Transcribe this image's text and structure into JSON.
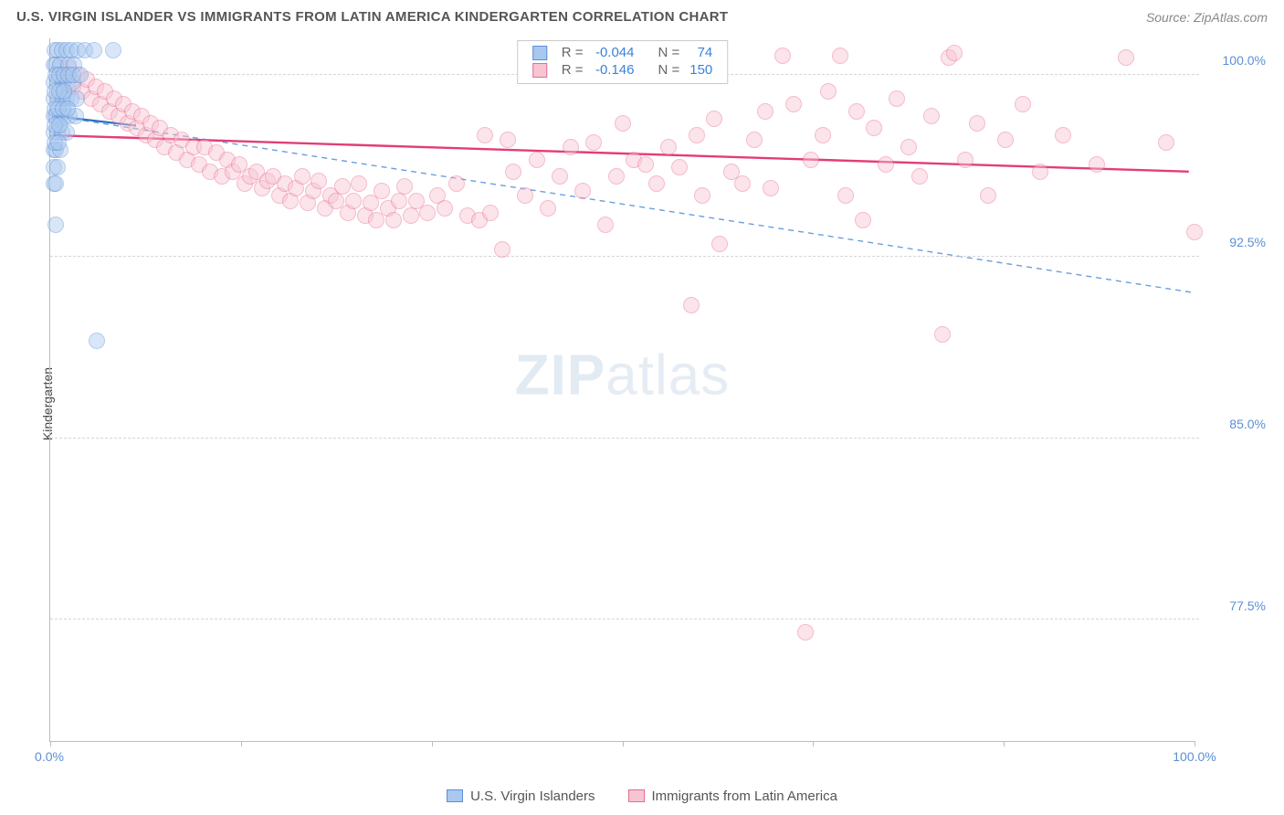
{
  "header": {
    "title": "U.S. VIRGIN ISLANDER VS IMMIGRANTS FROM LATIN AMERICA KINDERGARTEN CORRELATION CHART",
    "source": "Source: ZipAtlas.com"
  },
  "chart": {
    "type": "scatter",
    "ylabel": "Kindergarten",
    "xlim": [
      0,
      100
    ],
    "ylim": [
      72.5,
      101.5
    ],
    "y_ticks": [
      77.5,
      85.0,
      92.5,
      100.0
    ],
    "y_tick_labels": [
      "77.5%",
      "85.0%",
      "92.5%",
      "100.0%"
    ],
    "x_ticks": [
      0,
      16.67,
      33.33,
      50.0,
      66.67,
      83.33,
      100.0
    ],
    "x_tick_labels": {
      "0": "0.0%",
      "100": "100.0%"
    },
    "background_color": "#ffffff",
    "grid_color": "#d6d6d6",
    "axis_color": "#bdbdbd",
    "tick_label_color": "#5b8fd6",
    "marker_radius": 9,
    "marker_opacity": 0.45,
    "series": [
      {
        "id": "usvi",
        "label": "U.S. Virgin Islanders",
        "fill": "#a9c8ef",
        "stroke": "#5b8fd6",
        "trend_solid": {
          "x1": 0.3,
          "y1": 98.3,
          "x2": 7.5,
          "y2": 97.9,
          "color": "#2e6fc2",
          "width": 2.2
        },
        "trend_dashed": {
          "x1": 0.3,
          "y1": 98.3,
          "x2": 100,
          "y2": 91.0,
          "color": "#6a9fdd",
          "width": 1.4,
          "dash": "6,5"
        },
        "R": "-0.044",
        "N": "74",
        "points": [
          [
            0.4,
            101.0
          ],
          [
            0.6,
            101.0
          ],
          [
            1.0,
            101.0
          ],
          [
            1.4,
            101.0
          ],
          [
            1.8,
            101.0
          ],
          [
            2.4,
            101.0
          ],
          [
            3.0,
            101.0
          ],
          [
            3.8,
            101.0
          ],
          [
            5.5,
            101.0
          ],
          [
            0.3,
            100.4
          ],
          [
            0.5,
            100.4
          ],
          [
            0.9,
            100.4
          ],
          [
            1.6,
            100.4
          ],
          [
            2.1,
            100.4
          ],
          [
            0.3,
            99.7
          ],
          [
            0.6,
            99.7
          ],
          [
            1.1,
            99.7
          ],
          [
            1.5,
            99.7
          ],
          [
            2.0,
            99.7
          ],
          [
            0.3,
            99.0
          ],
          [
            0.7,
            99.0
          ],
          [
            1.1,
            99.0
          ],
          [
            1.4,
            99.0
          ],
          [
            1.8,
            99.0
          ],
          [
            2.3,
            99.0
          ],
          [
            0.3,
            98.3
          ],
          [
            0.5,
            98.3
          ],
          [
            0.9,
            98.3
          ],
          [
            1.3,
            98.3
          ],
          [
            1.7,
            98.3
          ],
          [
            2.2,
            98.3
          ],
          [
            0.3,
            97.6
          ],
          [
            0.6,
            97.6
          ],
          [
            1.0,
            97.6
          ],
          [
            1.4,
            97.6
          ],
          [
            0.3,
            96.9
          ],
          [
            0.5,
            96.9
          ],
          [
            0.9,
            96.9
          ],
          [
            0.3,
            96.2
          ],
          [
            0.6,
            96.2
          ],
          [
            0.3,
            95.5
          ],
          [
            0.5,
            95.5
          ],
          [
            0.4,
            99.3
          ],
          [
            0.8,
            99.3
          ],
          [
            1.2,
            99.3
          ],
          [
            0.4,
            98.6
          ],
          [
            0.7,
            98.6
          ],
          [
            1.1,
            98.6
          ],
          [
            1.5,
            98.6
          ],
          [
            0.4,
            97.9
          ],
          [
            0.8,
            97.9
          ],
          [
            0.4,
            97.2
          ],
          [
            0.7,
            97.2
          ],
          [
            0.5,
            100.0
          ],
          [
            0.8,
            100.0
          ],
          [
            1.2,
            100.0
          ],
          [
            1.6,
            100.0
          ],
          [
            2.0,
            100.0
          ],
          [
            2.6,
            100.0
          ],
          [
            0.5,
            93.8
          ],
          [
            4.1,
            89.0
          ]
        ]
      },
      {
        "id": "latam",
        "label": "Immigrants from Latin America",
        "fill": "#f7c5d1",
        "stroke": "#e86a93",
        "trend_solid": {
          "x1": 0.3,
          "y1": 97.5,
          "x2": 99.5,
          "y2": 96.0,
          "color": "#e23d78",
          "width": 2.4
        },
        "R": "-0.146",
        "N": "150",
        "points": [
          [
            0.8,
            100.3
          ],
          [
            1.2,
            99.8
          ],
          [
            1.6,
            100.3
          ],
          [
            2.0,
            99.5
          ],
          [
            2.4,
            100.0
          ],
          [
            2.8,
            99.3
          ],
          [
            3.2,
            99.8
          ],
          [
            3.6,
            99.0
          ],
          [
            4.0,
            99.5
          ],
          [
            4.4,
            98.8
          ],
          [
            4.8,
            99.3
          ],
          [
            5.2,
            98.5
          ],
          [
            5.6,
            99.0
          ],
          [
            6.0,
            98.3
          ],
          [
            6.4,
            98.8
          ],
          [
            6.8,
            98.0
          ],
          [
            7.2,
            98.5
          ],
          [
            7.6,
            97.8
          ],
          [
            8.0,
            98.3
          ],
          [
            8.4,
            97.5
          ],
          [
            8.8,
            98.0
          ],
          [
            9.2,
            97.3
          ],
          [
            9.6,
            97.8
          ],
          [
            10.0,
            97.0
          ],
          [
            10.5,
            97.5
          ],
          [
            11.0,
            96.8
          ],
          [
            11.5,
            97.3
          ],
          [
            12.0,
            96.5
          ],
          [
            12.5,
            97.0
          ],
          [
            13.0,
            96.3
          ],
          [
            13.5,
            97.0
          ],
          [
            14.0,
            96.0
          ],
          [
            14.5,
            96.8
          ],
          [
            15.0,
            95.8
          ],
          [
            15.5,
            96.5
          ],
          [
            16.0,
            96.0
          ],
          [
            16.5,
            96.3
          ],
          [
            17.0,
            95.5
          ],
          [
            17.5,
            95.8
          ],
          [
            18.0,
            96.0
          ],
          [
            18.5,
            95.3
          ],
          [
            19.0,
            95.6
          ],
          [
            19.5,
            95.8
          ],
          [
            20.0,
            95.0
          ],
          [
            20.5,
            95.5
          ],
          [
            21.0,
            94.8
          ],
          [
            21.5,
            95.3
          ],
          [
            22.0,
            95.8
          ],
          [
            22.5,
            94.7
          ],
          [
            23.0,
            95.2
          ],
          [
            23.5,
            95.6
          ],
          [
            24.0,
            94.5
          ],
          [
            24.5,
            95.0
          ],
          [
            25.0,
            94.8
          ],
          [
            25.5,
            95.4
          ],
          [
            26.0,
            94.3
          ],
          [
            26.5,
            94.8
          ],
          [
            27.0,
            95.5
          ],
          [
            27.5,
            94.2
          ],
          [
            28.0,
            94.7
          ],
          [
            28.5,
            94.0
          ],
          [
            29.0,
            95.2
          ],
          [
            29.5,
            94.5
          ],
          [
            30.0,
            94.0
          ],
          [
            30.5,
            94.8
          ],
          [
            31.0,
            95.4
          ],
          [
            31.5,
            94.2
          ],
          [
            32.0,
            94.8
          ],
          [
            33.0,
            94.3
          ],
          [
            33.8,
            95.0
          ],
          [
            34.5,
            94.5
          ],
          [
            35.5,
            95.5
          ],
          [
            36.5,
            94.2
          ],
          [
            37.5,
            94.0
          ],
          [
            38.0,
            97.5
          ],
          [
            38.5,
            94.3
          ],
          [
            39.5,
            92.8
          ],
          [
            40.0,
            97.3
          ],
          [
            40.5,
            96.0
          ],
          [
            41.5,
            95.0
          ],
          [
            42.5,
            96.5
          ],
          [
            43.5,
            94.5
          ],
          [
            44.5,
            95.8
          ],
          [
            45.5,
            97.0
          ],
          [
            46.5,
            95.2
          ],
          [
            47.5,
            97.2
          ],
          [
            48.5,
            93.8
          ],
          [
            49.5,
            95.8
          ],
          [
            50.0,
            98.0
          ],
          [
            51.0,
            96.5
          ],
          [
            52.0,
            96.3
          ],
          [
            53.0,
            95.5
          ],
          [
            54.0,
            97.0
          ],
          [
            55.0,
            96.2
          ],
          [
            56.0,
            90.5
          ],
          [
            56.5,
            97.5
          ],
          [
            57.0,
            95.0
          ],
          [
            58.0,
            98.2
          ],
          [
            58.5,
            93.0
          ],
          [
            59.5,
            96.0
          ],
          [
            60.5,
            95.5
          ],
          [
            61.5,
            97.3
          ],
          [
            62.5,
            98.5
          ],
          [
            63.0,
            95.3
          ],
          [
            64.0,
            100.8
          ],
          [
            65.0,
            98.8
          ],
          [
            66.0,
            77.0
          ],
          [
            66.5,
            96.5
          ],
          [
            67.5,
            97.5
          ],
          [
            68.0,
            99.3
          ],
          [
            69.0,
            100.8
          ],
          [
            69.5,
            95.0
          ],
          [
            70.5,
            98.5
          ],
          [
            71.0,
            94.0
          ],
          [
            72.0,
            97.8
          ],
          [
            73.0,
            96.3
          ],
          [
            74.0,
            99.0
          ],
          [
            75.0,
            97.0
          ],
          [
            76.0,
            95.8
          ],
          [
            77.0,
            98.3
          ],
          [
            78.0,
            89.3
          ],
          [
            78.5,
            100.7
          ],
          [
            79.0,
            100.9
          ],
          [
            80.0,
            96.5
          ],
          [
            81.0,
            98.0
          ],
          [
            82.0,
            95.0
          ],
          [
            83.5,
            97.3
          ],
          [
            85.0,
            98.8
          ],
          [
            86.5,
            96.0
          ],
          [
            88.5,
            97.5
          ],
          [
            91.5,
            96.3
          ],
          [
            94.0,
            100.7
          ],
          [
            97.5,
            97.2
          ],
          [
            100.0,
            93.5
          ]
        ]
      }
    ],
    "legend_top": {
      "border_color": "#c9c9c9",
      "label_color": "#666666",
      "value_color": "#3b82d6"
    },
    "watermark": {
      "text_bold": "ZIP",
      "text_light": "atlas"
    }
  },
  "bottom_legend": {
    "items": [
      {
        "label": "U.S. Virgin Islanders",
        "fill": "#a9c8ef",
        "stroke": "#5b8fd6"
      },
      {
        "label": "Immigrants from Latin America",
        "fill": "#f7c5d1",
        "stroke": "#e86a93"
      }
    ]
  }
}
